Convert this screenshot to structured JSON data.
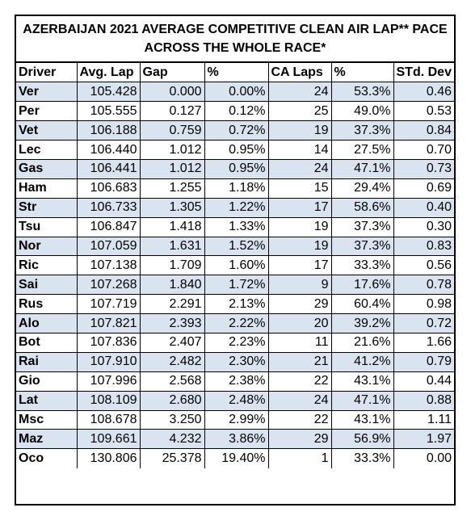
{
  "title_line1": "AZERBAIJAN 2021 AVERAGE COMPETITIVE CLEAN AIR LAP** PACE",
  "title_line2": "ACROSS THE WHOLE RACE*",
  "headers": [
    "Driver",
    "Avg. Lap",
    "Gap",
    "%",
    "CA Laps",
    "%",
    "STd. Dev"
  ],
  "rows": [
    [
      "Ver",
      "105.428",
      "0.000",
      "0.00%",
      "24",
      "53.3%",
      "0.46"
    ],
    [
      "Per",
      "105.555",
      "0.127",
      "0.12%",
      "25",
      "49.0%",
      "0.53"
    ],
    [
      "Vet",
      "106.188",
      "0.759",
      "0.72%",
      "19",
      "37.3%",
      "0.84"
    ],
    [
      "Lec",
      "106.440",
      "1.012",
      "0.95%",
      "14",
      "27.5%",
      "0.70"
    ],
    [
      "Gas",
      "106.441",
      "1.012",
      "0.95%",
      "24",
      "47.1%",
      "0.73"
    ],
    [
      "Ham",
      "106.683",
      "1.255",
      "1.18%",
      "15",
      "29.4%",
      "0.69"
    ],
    [
      "Str",
      "106.733",
      "1.305",
      "1.22%",
      "17",
      "58.6%",
      "0.40"
    ],
    [
      "Tsu",
      "106.847",
      "1.418",
      "1.33%",
      "19",
      "37.3%",
      "0.30"
    ],
    [
      "Nor",
      "107.059",
      "1.631",
      "1.52%",
      "19",
      "37.3%",
      "0.83"
    ],
    [
      "Ric",
      "107.138",
      "1.709",
      "1.60%",
      "17",
      "33.3%",
      "0.56"
    ],
    [
      "Sai",
      "107.268",
      "1.840",
      "1.72%",
      "9",
      "17.6%",
      "0.78"
    ],
    [
      "Rus",
      "107.719",
      "2.291",
      "2.13%",
      "29",
      "60.4%",
      "0.98"
    ],
    [
      "Alo",
      "107.821",
      "2.393",
      "2.22%",
      "20",
      "39.2%",
      "0.72"
    ],
    [
      "Bot",
      "107.836",
      "2.407",
      "2.23%",
      "11",
      "21.6%",
      "1.66"
    ],
    [
      "Rai",
      "107.910",
      "2.482",
      "2.30%",
      "21",
      "41.2%",
      "0.79"
    ],
    [
      "Gio",
      "107.996",
      "2.568",
      "2.38%",
      "22",
      "43.1%",
      "0.44"
    ],
    [
      "Lat",
      "108.109",
      "2.680",
      "2.48%",
      "24",
      "47.1%",
      "0.88"
    ],
    [
      "Msc",
      "108.678",
      "3.250",
      "2.99%",
      "22",
      "43.1%",
      "1.11"
    ],
    [
      "Maz",
      "109.661",
      "4.232",
      "3.86%",
      "29",
      "56.9%",
      "1.97"
    ],
    [
      "Oco",
      "130.806",
      "25.378",
      "19.40%",
      "1",
      "33.3%",
      "0.00"
    ]
  ],
  "colors": {
    "stripe": "#dae4f0",
    "border": "#000000"
  }
}
